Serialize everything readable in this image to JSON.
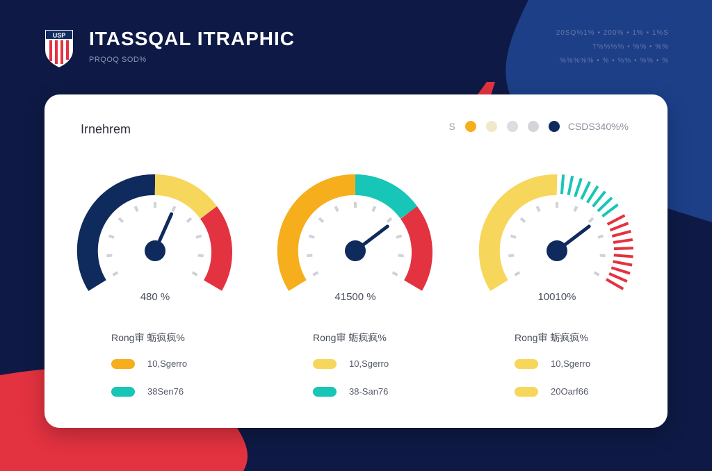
{
  "header": {
    "title": "ITASSQAL ITRAPHIC",
    "subtitle": "PRQOQ SOD%",
    "logo_text": "USP",
    "meta_lines": [
      "20SQ%1% • 200% • 1% • 1%S",
      "T%%%% • %% • %%",
      "%%%%% • % • %% • %% • %"
    ]
  },
  "card": {
    "title": "Irnehrem",
    "legend": {
      "prefix": "S",
      "label": "CSDS340%%",
      "colors": [
        "#f6ae1c",
        "#efe9c9",
        "#dcdde2",
        "#d3d5db",
        "#0f2a5c"
      ]
    }
  },
  "gauges": [
    {
      "value_text": "480 %",
      "needle_pct": 0.6,
      "row_head": "Rong审  蛎疯疯%",
      "items": [
        {
          "text": "10,Sgerro",
          "color": "#f6ae1c"
        },
        {
          "text": "38Sen76",
          "color": "#17c6b6"
        }
      ]
    },
    {
      "value_text": "41500 %",
      "needle_pct": 0.72,
      "row_head": "Rong审  蛎疯疯%",
      "items": [
        {
          "text": "10,Sgerro",
          "color": "#f7d65c"
        },
        {
          "text": "38-San76",
          "color": "#17c6b6"
        }
      ]
    },
    {
      "value_text": "10010%",
      "needle_pct": 0.72,
      "row_head": "Rong审  蛎疯疯%",
      "items": [
        {
          "text": "10,Sgerro",
          "color": "#f7d65c"
        },
        {
          "text": "20Oarf66",
          "color": "#f7d65c"
        }
      ]
    }
  ],
  "colors": {
    "navy": "#0f2a5c",
    "yellow": "#f7d65c",
    "orange": "#f6ae1c",
    "red": "#e33240",
    "teal": "#17c6b6",
    "accent_blue": "#1c3f88",
    "background": "#0e1a45"
  }
}
